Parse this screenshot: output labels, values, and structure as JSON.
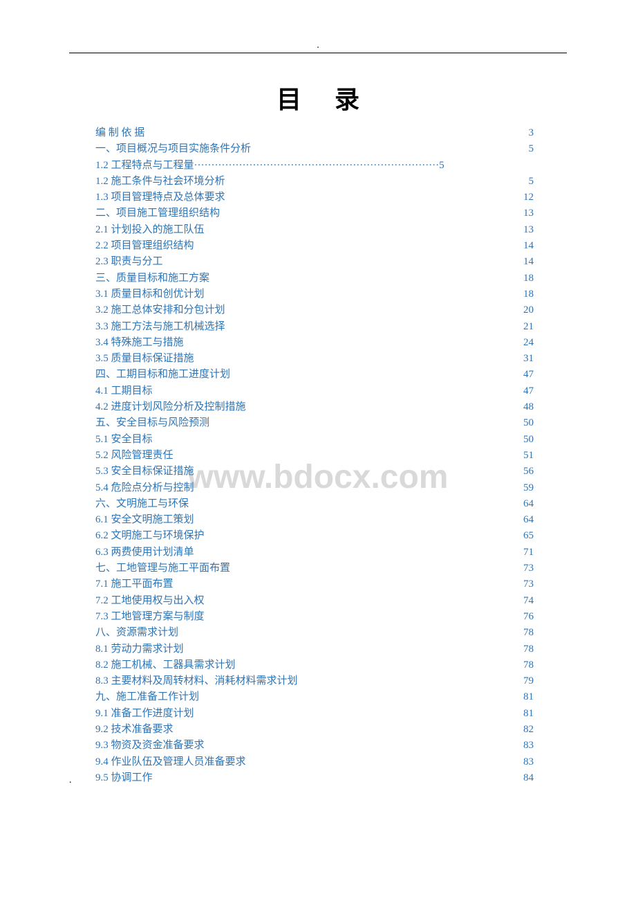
{
  "colors": {
    "link": "#2e74b5",
    "text": "#000000",
    "watermark": "#d9d9d9",
    "background": "#ffffff",
    "rule": "#000000"
  },
  "typography": {
    "body_font": "SimSun",
    "title_fontsize": 36,
    "toc_fontsize": 15,
    "toc_lineheight": 23.3,
    "watermark_fontsize": 48
  },
  "header": {
    "dot": ".",
    "title": "目录"
  },
  "watermark": "www.bdocx.com",
  "footer": {
    "dot": "."
  },
  "toc": [
    {
      "label": "编 制 依 据",
      "page": "3",
      "spaced": true
    },
    {
      "label": "一、项目概况与项目实施条件分析",
      "page": "5"
    },
    {
      "label": "1.2  工程特点与工程量",
      "page": "5",
      "dotted": true
    },
    {
      "label": "1.2 施工条件与社会环境分析",
      "page": "5"
    },
    {
      "label": "1.3 项目管理特点及总体要求",
      "page": "12"
    },
    {
      "label": "二、项目施工管理组织结构",
      "page": "13"
    },
    {
      "label": "2.1 计划投入的施工队伍",
      "page": "13"
    },
    {
      "label": "2.2 项目管理组织结构",
      "page": "14"
    },
    {
      "label": "2.3 职责与分工",
      "page": "14"
    },
    {
      "label": "三、质量目标和施工方案",
      "page": "18"
    },
    {
      "label": "3.1 质量目标和创优计划",
      "page": "18"
    },
    {
      "label": "3.2 施工总体安排和分包计划",
      "page": "20"
    },
    {
      "label": "3.3 施工方法与施工机械选择",
      "page": "21"
    },
    {
      "label": "3.4 特殊施工与措施",
      "page": "24"
    },
    {
      "label": "3.5 质量目标保证措施",
      "page": "31"
    },
    {
      "label": "四、工期目标和施工进度计划",
      "page": "47"
    },
    {
      "label": "4.1 工期目标",
      "page": "47"
    },
    {
      "label": "4.2 进度计划风险分析及控制措施",
      "page": "48"
    },
    {
      "label": "五、安全目标与风险预测",
      "page": "50"
    },
    {
      "label": "5.1 安全目标",
      "page": "50"
    },
    {
      "label": "5.2 风险管理责任",
      "page": "51"
    },
    {
      "label": "5.3 安全目标保证措施",
      "page": "56"
    },
    {
      "label": "5.4 危险点分析与控制",
      "page": "59"
    },
    {
      "label": "六、文明施工与环保",
      "page": "64"
    },
    {
      "label": "6.1 安全文明施工策划",
      "page": "64"
    },
    {
      "label": "6.2 文明施工与环境保护",
      "page": "65"
    },
    {
      "label": "6.3 两费使用计划清单",
      "page": "71"
    },
    {
      "label": "七、工地管理与施工平面布置",
      "page": "73"
    },
    {
      "label": "7.1 施工平面布置",
      "page": "73"
    },
    {
      "label": "7.2 工地使用权与出入权",
      "page": "74"
    },
    {
      "label": "7.3 工地管理方案与制度",
      "page": "76"
    },
    {
      "label": "八、资源需求计划",
      "page": "78"
    },
    {
      "label": "8.1 劳动力需求计划",
      "page": "78"
    },
    {
      "label": "8.2 施工机械、工器具需求计划",
      "page": "78"
    },
    {
      "label": "8.3 主要材料及周转材料、消耗材料需求计划",
      "page": "79"
    },
    {
      "label": "九、施工准备工作计划",
      "page": "81"
    },
    {
      "label": "9.1 准备工作进度计划",
      "page": "81"
    },
    {
      "label": "9.2 技术准备要求",
      "page": "82"
    },
    {
      "label": "9.3 物资及资金准备要求",
      "page": "83"
    },
    {
      "label": "9.4 作业队伍及管理人员准备要求",
      "page": "83"
    },
    {
      "label": "9.5 协调工作",
      "page": "84"
    }
  ],
  "dots_leader": "·······································································"
}
